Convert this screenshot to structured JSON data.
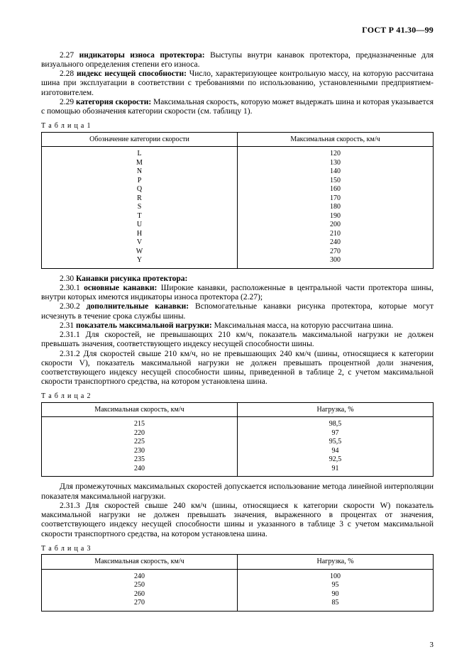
{
  "doc_header": "ГОСТ Р 41.30—99",
  "page_number": "3",
  "p_2_27_num": "2.27 ",
  "p_2_27_term": "индикаторы износа протектора:",
  "p_2_27_text": " Выступы внутри канавок протектора, предназначенные для визуального определения степени его износа.",
  "p_2_28_num": "2.28 ",
  "p_2_28_term": "индекс несущей способности:",
  "p_2_28_text": " Число, характеризующее контрольную массу, на которую рассчитана шина при эксплуатации в соответствии с требованиями по использованию, установленными предприятием-изготовителем.",
  "p_2_29_num": "2.29 ",
  "p_2_29_term": "категория скорости:",
  "p_2_29_text": " Максимальная скорость, которую может выдержать шина и которая указывается с помощью обозначения категории скорости (см. таблицу 1).",
  "table1": {
    "caption": "Т а б л и ц а  1",
    "col1_header": "Обозначение категории скорости",
    "col2_header": "Максимальная скорость, км/ч",
    "rows": [
      [
        "L",
        "120"
      ],
      [
        "M",
        "130"
      ],
      [
        "N",
        "140"
      ],
      [
        "P",
        "150"
      ],
      [
        "Q",
        "160"
      ],
      [
        "R",
        "170"
      ],
      [
        "S",
        "180"
      ],
      [
        "T",
        "190"
      ],
      [
        "U",
        "200"
      ],
      [
        "H",
        "210"
      ],
      [
        "V",
        "240"
      ],
      [
        "W",
        "270"
      ],
      [
        "Y",
        "300"
      ]
    ]
  },
  "p_2_30_num": "2.30 ",
  "p_2_30_term": "Канавки рисунка протектора:",
  "p_2_30_1_num": "2.30.1 ",
  "p_2_30_1_term": "основные канавки:",
  "p_2_30_1_text": " Широкие канавки, расположенные в центральной части протектора шины, внутри которых имеются индикаторы износа протектора (2.27);",
  "p_2_30_2_num": "2.30.2 ",
  "p_2_30_2_term": "дополнительные канавки:",
  "p_2_30_2_text": " Вспомогательные канавки рисунка протектора, которые могут исчезнуть в течение срока службы шины.",
  "p_2_31_num": "2.31 ",
  "p_2_31_term": "показатель максимальной нагрузки:",
  "p_2_31_text": " Максимальная масса, на которую рассчитана шина.",
  "p_2_31_1": "2.31.1 Для скоростей, не превышающих 210 км/ч, показатель максимальной нагрузки не должен превышать значения, соответствующего индексу несущей способности шины.",
  "p_2_31_2": "2.31.2 Для скоростей свыше 210 км/ч, но не превышающих 240 км/ч (шины, относящиеся к категории скорости V), показатель максимальной нагрузки не должен превышать процентной доли значения, соответствующего индексу несущей способности шины, приведенной в таблице 2, с учетом максимальной скорости транспортного средства, на котором установлена шина.",
  "table2": {
    "caption": "Т а б л и ц а  2",
    "col1_header": "Максимальная скорость, км/ч",
    "col2_header": "Нагрузка, %",
    "rows": [
      [
        "215",
        "98,5"
      ],
      [
        "220",
        "97"
      ],
      [
        "225",
        "95,5"
      ],
      [
        "230",
        "94"
      ],
      [
        "235",
        "92,5"
      ],
      [
        "240",
        "91"
      ]
    ]
  },
  "p_after_t2": "Для промежуточных максимальных скоростей допускается использование метода линейной интерполяции показателя максимальной нагрузки.",
  "p_2_31_3": "2.31.3 Для скоростей свыше 240  км/ч (шины, относящиеся к категории скорости W) показатель максимальной нагрузки не должен превышать значения, выраженного в процентах от значения, соответствующего индексу несущей способности шины и указанного в таблице 3 с учетом максимальной скорости транспортного средства, на котором установлена шина.",
  "table3": {
    "caption": "Т а б л и ц а  3",
    "col1_header": "Максимальная скорость, км/ч",
    "col2_header": "Нагрузка, %",
    "rows": [
      [
        "240",
        "100"
      ],
      [
        "250",
        "95"
      ],
      [
        "260",
        "90"
      ],
      [
        "270",
        "85"
      ]
    ]
  }
}
